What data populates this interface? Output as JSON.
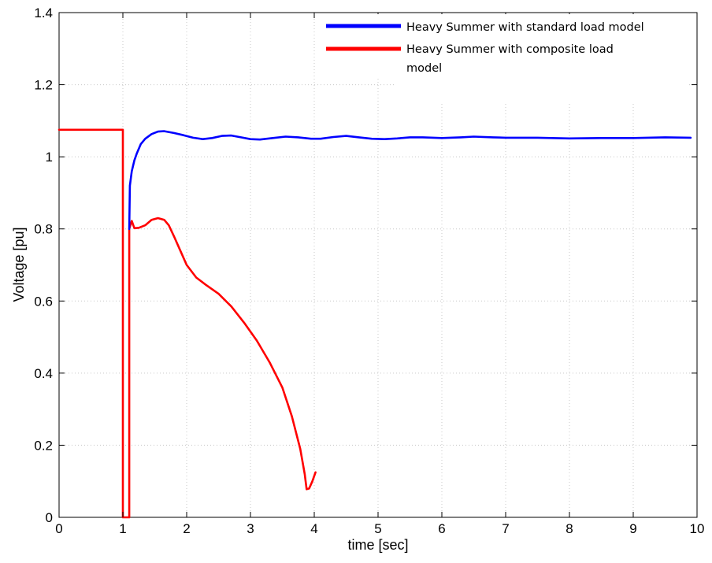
{
  "chart_data": {
    "type": "line",
    "title": "",
    "xlabel": "time [sec]",
    "ylabel": "Voltage [pu]",
    "xlim": [
      0,
      10
    ],
    "ylim": [
      0,
      1.4
    ],
    "x_ticks": [
      0,
      1,
      2,
      3,
      4,
      5,
      6,
      7,
      8,
      9,
      10
    ],
    "x_tick_labels": [
      "0",
      "1",
      "2",
      "3",
      "4",
      "5",
      "6",
      "7",
      "8",
      "9",
      "10"
    ],
    "y_ticks": [
      0,
      0.2,
      0.4,
      0.6,
      0.8,
      1.0,
      1.2,
      1.4
    ],
    "y_tick_labels": [
      "0",
      "0.2",
      "0.4",
      "0.6",
      "0.8",
      "1",
      "1.2",
      "1.4"
    ],
    "grid": true,
    "legend_position": "top-right",
    "series": [
      {
        "name": "Heavy Summer with standard load model",
        "color": "#0000ff",
        "points": [
          [
            1.1,
            0.8
          ],
          [
            1.11,
            0.92
          ],
          [
            1.14,
            0.96
          ],
          [
            1.18,
            0.99
          ],
          [
            1.22,
            1.01
          ],
          [
            1.28,
            1.035
          ],
          [
            1.35,
            1.05
          ],
          [
            1.45,
            1.063
          ],
          [
            1.55,
            1.07
          ],
          [
            1.65,
            1.071
          ],
          [
            1.8,
            1.066
          ],
          [
            1.95,
            1.06
          ],
          [
            2.1,
            1.053
          ],
          [
            2.25,
            1.049
          ],
          [
            2.4,
            1.052
          ],
          [
            2.55,
            1.058
          ],
          [
            2.7,
            1.059
          ],
          [
            2.85,
            1.054
          ],
          [
            3.0,
            1.049
          ],
          [
            3.15,
            1.048
          ],
          [
            3.35,
            1.052
          ],
          [
            3.55,
            1.056
          ],
          [
            3.75,
            1.054
          ],
          [
            3.95,
            1.05
          ],
          [
            4.1,
            1.05
          ],
          [
            4.3,
            1.055
          ],
          [
            4.5,
            1.058
          ],
          [
            4.7,
            1.054
          ],
          [
            4.9,
            1.05
          ],
          [
            5.1,
            1.049
          ],
          [
            5.3,
            1.051
          ],
          [
            5.5,
            1.054
          ],
          [
            5.7,
            1.054
          ],
          [
            6.0,
            1.052
          ],
          [
            6.3,
            1.054
          ],
          [
            6.5,
            1.056
          ],
          [
            6.8,
            1.054
          ],
          [
            7.0,
            1.053
          ],
          [
            7.5,
            1.053
          ],
          [
            8.0,
            1.051
          ],
          [
            8.5,
            1.052
          ],
          [
            9.0,
            1.052
          ],
          [
            9.5,
            1.054
          ],
          [
            9.9,
            1.053
          ]
        ]
      },
      {
        "name": "Heavy Summer with composite load model",
        "color": "#ff0000",
        "points": [
          [
            0,
            1.075
          ],
          [
            1.0,
            1.075
          ],
          [
            1.0,
            0.0
          ],
          [
            1.1,
            0.0
          ],
          [
            1.1,
            0.8
          ],
          [
            1.14,
            0.822
          ],
          [
            1.18,
            0.802
          ],
          [
            1.25,
            0.803
          ],
          [
            1.35,
            0.81
          ],
          [
            1.45,
            0.825
          ],
          [
            1.55,
            0.83
          ],
          [
            1.65,
            0.825
          ],
          [
            1.72,
            0.81
          ],
          [
            1.8,
            0.78
          ],
          [
            1.9,
            0.74
          ],
          [
            2.0,
            0.7
          ],
          [
            2.15,
            0.665
          ],
          [
            2.3,
            0.645
          ],
          [
            2.5,
            0.62
          ],
          [
            2.7,
            0.585
          ],
          [
            2.9,
            0.54
          ],
          [
            3.1,
            0.49
          ],
          [
            3.3,
            0.43
          ],
          [
            3.5,
            0.36
          ],
          [
            3.65,
            0.28
          ],
          [
            3.78,
            0.19
          ],
          [
            3.85,
            0.12
          ],
          [
            3.88,
            0.078
          ],
          [
            3.92,
            0.08
          ],
          [
            3.97,
            0.1
          ],
          [
            4.02,
            0.125
          ]
        ]
      }
    ]
  }
}
